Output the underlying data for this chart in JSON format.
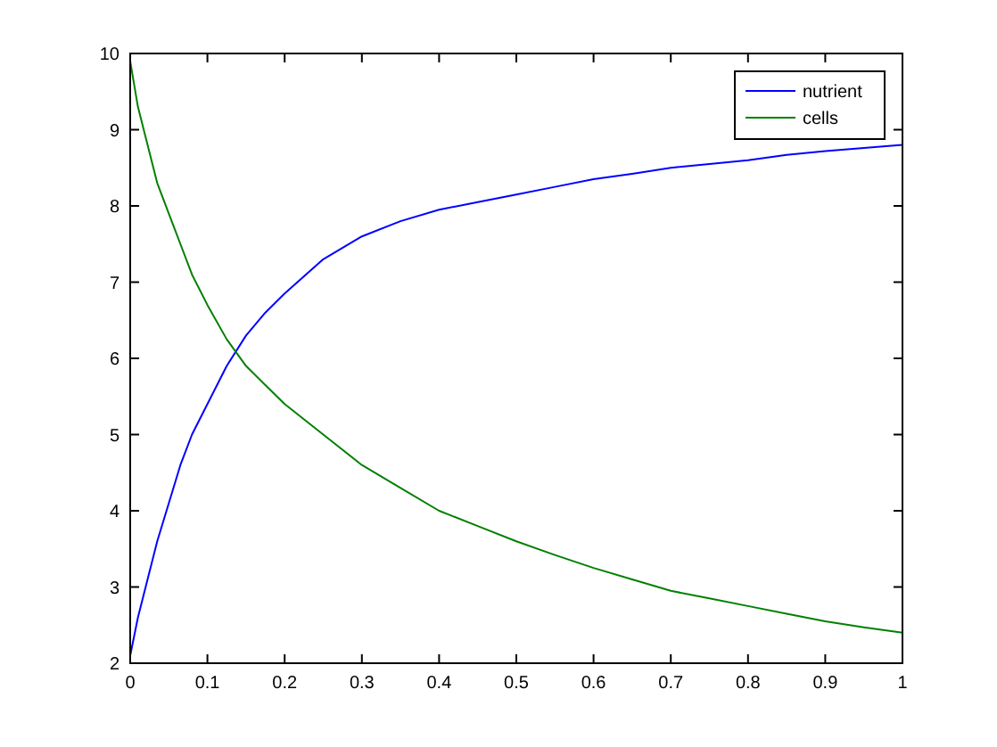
{
  "chart_data": {
    "type": "line",
    "x": [
      0,
      0.01,
      0.02,
      0.035,
      0.05,
      0.065,
      0.08,
      0.1,
      0.125,
      0.15,
      0.175,
      0.2,
      0.25,
      0.3,
      0.35,
      0.4,
      0.45,
      0.5,
      0.55,
      0.6,
      0.65,
      0.7,
      0.75,
      0.8,
      0.85,
      0.9,
      0.95,
      1
    ],
    "series": [
      {
        "name": "nutrient",
        "color": "#0000ff",
        "values": [
          2.1,
          2.6,
          3.0,
          3.6,
          4.1,
          4.6,
          5.0,
          5.4,
          5.9,
          6.3,
          6.6,
          6.85,
          7.3,
          7.6,
          7.8,
          7.95,
          8.05,
          8.15,
          8.25,
          8.35,
          8.42,
          8.5,
          8.55,
          8.6,
          8.67,
          8.72,
          8.76,
          8.8
        ]
      },
      {
        "name": "cells",
        "color": "#008000",
        "values": [
          9.9,
          9.3,
          8.9,
          8.3,
          7.9,
          7.5,
          7.1,
          6.7,
          6.25,
          5.9,
          5.65,
          5.4,
          5.0,
          4.6,
          4.3,
          4.0,
          3.8,
          3.6,
          3.42,
          3.25,
          3.1,
          2.95,
          2.85,
          2.75,
          2.65,
          2.55,
          2.47,
          2.4
        ]
      }
    ],
    "xlim": [
      0,
      1
    ],
    "xticks": [
      0,
      0.1,
      0.2,
      0.3,
      0.4,
      0.5,
      0.6,
      0.7,
      0.8,
      0.9,
      1
    ],
    "ylim": [
      2,
      10
    ],
    "yticks": [
      2,
      3,
      4,
      5,
      6,
      7,
      8,
      9,
      10
    ],
    "legend": "top right",
    "marker": "none",
    "line_style": "solid"
  }
}
